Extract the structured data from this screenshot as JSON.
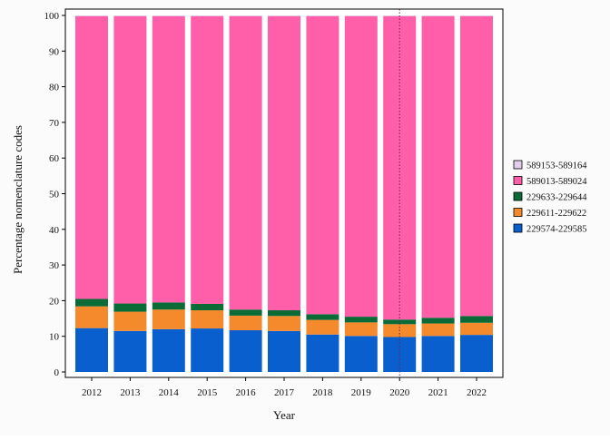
{
  "chart_data": {
    "type": "bar",
    "stacked": true,
    "percent_stacked": true,
    "xlabel": "Year",
    "ylabel": "Percentage nomenclature codes",
    "ylim": [
      0,
      100
    ],
    "yticks": [
      0,
      10,
      20,
      30,
      40,
      50,
      60,
      70,
      80,
      90,
      100
    ],
    "grid": false,
    "legend_position": "right",
    "reference_line": {
      "x": "2020",
      "style": "dotted"
    },
    "categories": [
      "2012",
      "2013",
      "2014",
      "2015",
      "2016",
      "2017",
      "2018",
      "2019",
      "2020",
      "2021",
      "2022"
    ],
    "series": [
      {
        "name": "229574-229585",
        "color": "#0a5fce",
        "values": [
          12.3,
          11.5,
          12.0,
          12.2,
          11.7,
          11.5,
          10.5,
          10.1,
          9.8,
          10.1,
          10.4
        ]
      },
      {
        "name": "229611-229622",
        "color": "#f58a2c",
        "values": [
          6.1,
          5.4,
          5.5,
          5.1,
          4.1,
          4.2,
          4.1,
          3.8,
          3.6,
          3.5,
          3.4
        ]
      },
      {
        "name": "229633-229644",
        "color": "#0a6b37",
        "values": [
          2.1,
          2.3,
          2.0,
          1.8,
          1.7,
          1.6,
          1.6,
          1.6,
          1.3,
          1.6,
          1.9
        ]
      },
      {
        "name": "589013-589024",
        "color": "#fe5fa8",
        "values": [
          79.3,
          80.6,
          80.3,
          80.7,
          82.3,
          82.5,
          83.6,
          84.3,
          85.1,
          84.6,
          84.1
        ]
      },
      {
        "name": "589153-589164",
        "color": "#e2cdea",
        "values": [
          0.2,
          0.2,
          0.2,
          0.2,
          0.2,
          0.2,
          0.2,
          0.2,
          0.2,
          0.2,
          0.2
        ]
      }
    ]
  }
}
